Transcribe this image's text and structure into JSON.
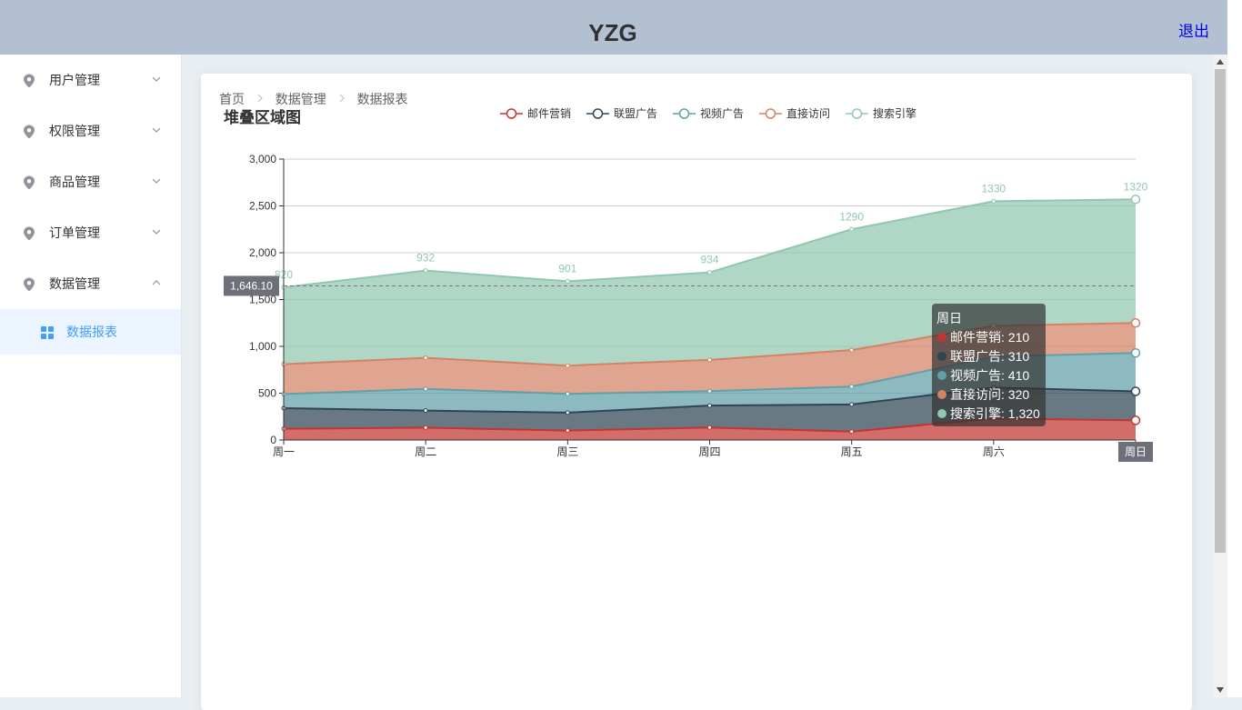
{
  "header": {
    "title": "YZG",
    "logout": "退出"
  },
  "sidebar": {
    "items": [
      {
        "label": "用户管理",
        "expanded": false
      },
      {
        "label": "权限管理",
        "expanded": false
      },
      {
        "label": "商品管理",
        "expanded": false
      },
      {
        "label": "订单管理",
        "expanded": false
      },
      {
        "label": "数据管理",
        "expanded": true
      }
    ],
    "subitem": {
      "label": "数据报表",
      "active": true
    }
  },
  "breadcrumb": [
    "首页",
    "数据管理",
    "数据报表"
  ],
  "chart_data": {
    "type": "area",
    "stacked": true,
    "title": "堆叠区域图",
    "categories": [
      "周一",
      "周二",
      "周三",
      "周四",
      "周五",
      "周六",
      "周日"
    ],
    "series": [
      {
        "name": "邮件营销",
        "values": [
          120,
          132,
          101,
          134,
          90,
          230,
          210
        ],
        "color": "#c23531"
      },
      {
        "name": "联盟广告",
        "values": [
          220,
          182,
          191,
          234,
          290,
          330,
          310
        ],
        "color": "#2f4554"
      },
      {
        "name": "视频广告",
        "values": [
          150,
          232,
          201,
          154,
          190,
          330,
          410
        ],
        "color": "#61a0a8"
      },
      {
        "name": "直接访问",
        "values": [
          320,
          332,
          301,
          334,
          390,
          330,
          320
        ],
        "color": "#d48265"
      },
      {
        "name": "搜索引擎",
        "values": [
          820,
          932,
          901,
          934,
          1290,
          1330,
          1320
        ],
        "color": "#91c7ae"
      }
    ],
    "top_labels": [
      "820",
      "932",
      "901",
      "934",
      "1290",
      "1330",
      "1320"
    ],
    "ylim": [
      0,
      3000
    ],
    "yticks": [
      "0",
      "500",
      "1,000",
      "1,500",
      "2,000",
      "2,500",
      "3,000"
    ],
    "legend_position": "top",
    "grid": true,
    "pointer": {
      "y_label": "1,646.10",
      "y_value": 1646.1,
      "x_label": "周日"
    },
    "tooltip": {
      "title": "周日",
      "rows": [
        "邮件营销: 210",
        "联盟广告: 310",
        "视频广告: 410",
        "直接访问: 320",
        "搜索引擎: 1,320"
      ]
    }
  }
}
